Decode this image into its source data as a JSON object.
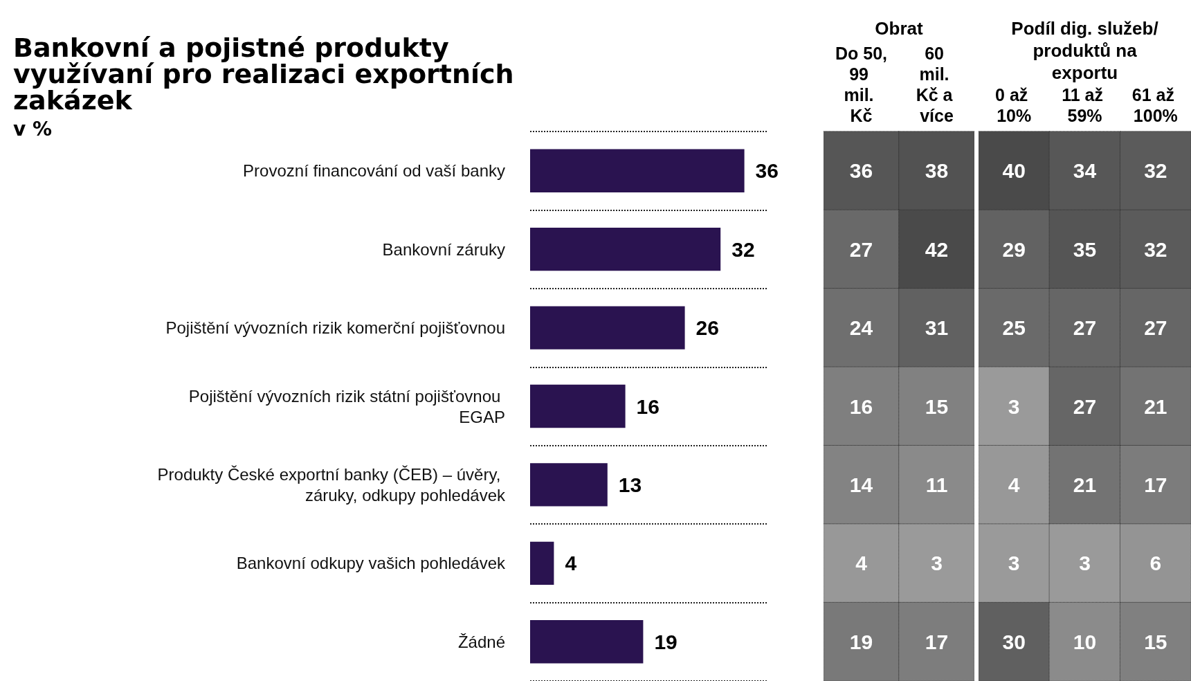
{
  "chart_data": [
    {
      "type": "bar",
      "orientation": "horizontal",
      "title": "Bankovní a pojistné produkty využívaní pro realizaci exportních zakázek",
      "subtitle": "v %",
      "categories": [
        "Provozní financování od vaší banky",
        "Bankovní záruky",
        "Pojištění vývozních rizik komerční pojišťovnou",
        "Pojištění vývozních rizik státní pojišťovnou EGAP",
        "Produkty České exportní banky (ČEB) – úvěry, záruky, odkupy pohledávek",
        "Bankovní odkupy vašich pohledávek",
        "Žádné"
      ],
      "values": [
        36,
        32,
        26,
        16,
        13,
        4,
        19
      ],
      "color": "#2a1350",
      "data_labels": true,
      "tick_labels": "y",
      "grid": "y"
    },
    {
      "type": "heatmap",
      "title": "Obrat",
      "categories": [
        "Do 50,99 mil. Kč",
        "60 mil. Kč a více"
      ],
      "y_categories": [
        null,
        null,
        null,
        null,
        null,
        null,
        null
      ],
      "cells": [
        [
          36,
          38
        ],
        [
          27,
          42
        ],
        [
          24,
          31
        ],
        [
          16,
          15
        ],
        [
          14,
          11
        ],
        [
          4,
          3
        ],
        [
          19,
          17
        ]
      ],
      "data_labels": true,
      "tick_labels": "x"
    },
    {
      "type": "heatmap",
      "title": "Podíl dig. služeb/ produktů na exportu",
      "categories": [
        "0 až 10%",
        "11 až 59%",
        "61 až 100%"
      ],
      "y_categories": [
        null,
        null,
        null,
        null,
        null,
        null,
        null
      ],
      "cells": [
        [
          40,
          34,
          32
        ],
        [
          29,
          35,
          32
        ],
        [
          25,
          27,
          27
        ],
        [
          3,
          27,
          21
        ],
        [
          4,
          21,
          17
        ],
        [
          3,
          3,
          6
        ],
        [
          30,
          10,
          15
        ]
      ],
      "data_labels": true,
      "tick_labels": "x"
    }
  ]
}
